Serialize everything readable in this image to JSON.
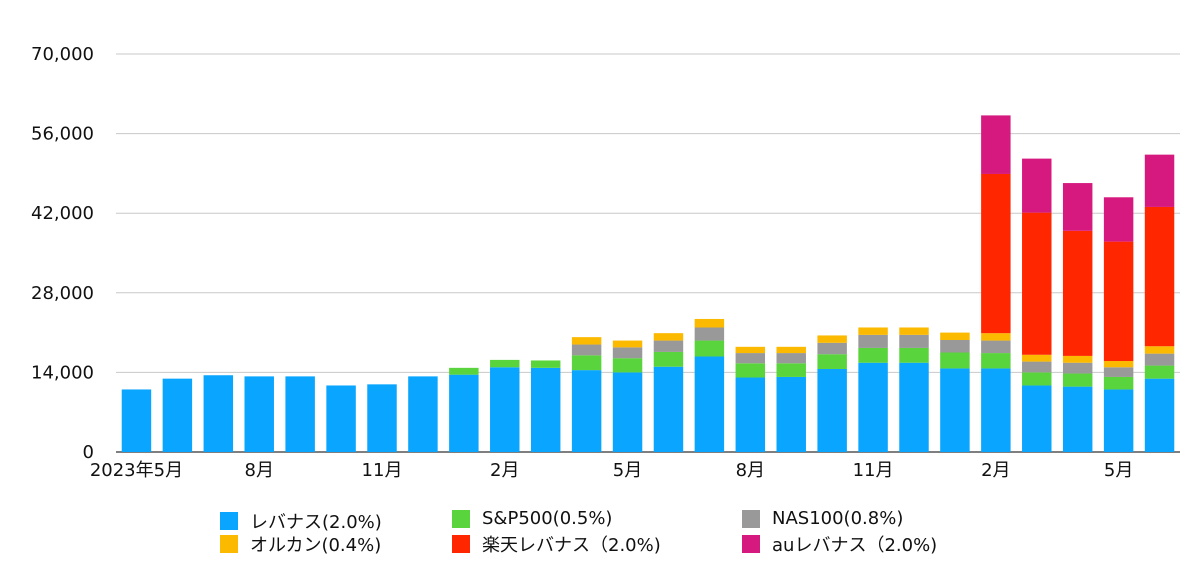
{
  "chart_data": {
    "type": "bar",
    "stacked": true,
    "categories": [
      "2023年5月",
      "",
      "",
      "8月",
      "",
      "",
      "11月",
      "",
      "",
      "2月",
      "",
      "",
      "5月",
      "",
      "",
      "8月",
      "",
      "",
      "11月",
      "",
      "",
      "2月",
      "",
      "",
      "5月",
      ""
    ],
    "ylim": [
      0,
      70000
    ],
    "yticks": [
      "0",
      "14,000",
      "28,000",
      "42,000",
      "56,000",
      "70,000"
    ],
    "ytick_values": [
      0,
      14000,
      28000,
      42000,
      56000,
      70000
    ],
    "grid": true,
    "legend_position": "bottom",
    "series": [
      {
        "name": "レバナス(2.0%)",
        "color": "#0aa5ff",
        "values": [
          11000,
          12900,
          13500,
          13300,
          13300,
          11700,
          11900,
          13300,
          13600,
          14900,
          14800,
          14400,
          14000,
          15000,
          16800,
          13100,
          13200,
          14600,
          15700,
          15700,
          14700,
          14700,
          11700,
          11500,
          11000,
          12900
        ]
      },
      {
        "name": "S&P500(0.5%)",
        "color": "#5ad43c",
        "values": [
          0,
          0,
          0,
          0,
          0,
          0,
          0,
          0,
          1200,
          1300,
          1300,
          2600,
          2500,
          2600,
          2800,
          2500,
          2400,
          2600,
          2600,
          2600,
          2800,
          2700,
          2300,
          2300,
          2200,
          2300
        ]
      },
      {
        "name": "NAS100(0.8%)",
        "color": "#999999",
        "values": [
          0,
          0,
          0,
          0,
          0,
          0,
          0,
          0,
          0,
          0,
          0,
          1900,
          1900,
          2000,
          2300,
          1800,
          1800,
          2000,
          2300,
          2300,
          2200,
          2200,
          1900,
          1900,
          1700,
          2100
        ]
      },
      {
        "name": "オルカン(0.4%)",
        "color": "#fbb900",
        "values": [
          0,
          0,
          0,
          0,
          0,
          0,
          0,
          0,
          0,
          0,
          0,
          1300,
          1200,
          1300,
          1500,
          1100,
          1100,
          1300,
          1300,
          1300,
          1300,
          1300,
          1200,
          1200,
          1100,
          1300
        ]
      },
      {
        "name": "楽天レバナス（2.0%)",
        "color": "#ff2600",
        "values": [
          0,
          0,
          0,
          0,
          0,
          0,
          0,
          0,
          0,
          0,
          0,
          0,
          0,
          0,
          0,
          0,
          0,
          0,
          0,
          0,
          0,
          28000,
          25000,
          22000,
          21000,
          24500
        ]
      },
      {
        "name": "auレバナス（2.0%)",
        "color": "#d6197f",
        "values": [
          0,
          0,
          0,
          0,
          0,
          0,
          0,
          0,
          0,
          0,
          0,
          0,
          0,
          0,
          0,
          0,
          0,
          0,
          0,
          0,
          0,
          10300,
          9500,
          8400,
          7800,
          9200
        ]
      }
    ]
  }
}
